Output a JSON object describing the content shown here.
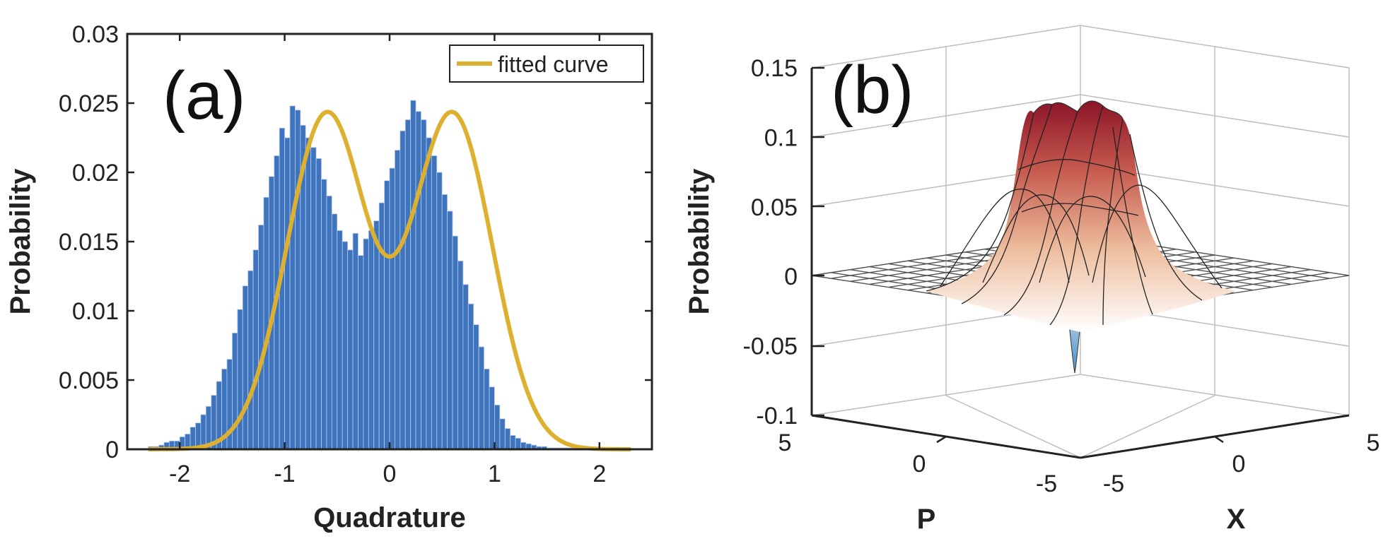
{
  "chart_data": [
    {
      "panel_label": "(a)",
      "type": "bar",
      "overlay": "line",
      "xlabel": "Quadrature",
      "ylabel": "Probability",
      "xlim": [
        -2.5,
        2.5
      ],
      "ylim": [
        0,
        0.03
      ],
      "xticks": [
        "-2",
        "-1",
        "0",
        "1",
        "2"
      ],
      "yticks": [
        "0",
        "0.005",
        "0.01",
        "0.015",
        "0.02",
        "0.025",
        "0.03"
      ],
      "legend": "fitted curve",
      "legend_position": "top-right",
      "bar_color": "#3d74bd",
      "curve_color": "#ddb02f",
      "bin_start": -2.3,
      "bin_width": 0.05,
      "values": [
        0.0002,
        0.0002,
        0.0003,
        0.0005,
        0.0006,
        0.0006,
        0.0009,
        0.0011,
        0.0016,
        0.0019,
        0.0025,
        0.0031,
        0.0039,
        0.0049,
        0.0058,
        0.0065,
        0.0084,
        0.0101,
        0.0118,
        0.0129,
        0.0144,
        0.0162,
        0.0182,
        0.0197,
        0.0212,
        0.0232,
        0.0225,
        0.0248,
        0.0245,
        0.0234,
        0.0225,
        0.0218,
        0.021,
        0.0195,
        0.0183,
        0.017,
        0.0158,
        0.015,
        0.0144,
        0.0156,
        0.014,
        0.0152,
        0.0158,
        0.0165,
        0.0178,
        0.0194,
        0.0203,
        0.0216,
        0.023,
        0.0238,
        0.0252,
        0.0244,
        0.0238,
        0.0225,
        0.0212,
        0.02,
        0.0184,
        0.0172,
        0.0154,
        0.0136,
        0.0119,
        0.0105,
        0.009,
        0.0074,
        0.0058,
        0.0045,
        0.0032,
        0.0022,
        0.0015,
        0.001,
        0.0008,
        0.0005,
        0.0004,
        0.0003,
        0.0002,
        0.0002,
        0.0001,
        0.0001,
        0.0001,
        0.0001,
        0.0001,
        0.0001
      ],
      "fit": {
        "mu": 0.6,
        "sigma": 0.38,
        "amplitude": 0.0242
      }
    },
    {
      "panel_label": "(b)",
      "type": "surface",
      "ylabel": "Probability",
      "xlabel": "X",
      "plabel": "P",
      "zlim": [
        -0.1,
        0.15
      ],
      "zticks": [
        "-0.1",
        "-0.05",
        "0",
        "0.05",
        "0.1",
        "0.15"
      ],
      "xticks": [
        "-5",
        "0",
        "5"
      ],
      "pticks": [
        "5",
        "0",
        "-5"
      ],
      "xlim": [
        -5,
        5
      ],
      "plim": [
        -5,
        5
      ],
      "positive_color": "#9a1a2a",
      "negative_color": "#5a9ac8",
      "description_values": {
        "peak": 0.13,
        "min": -0.07
      }
    }
  ]
}
